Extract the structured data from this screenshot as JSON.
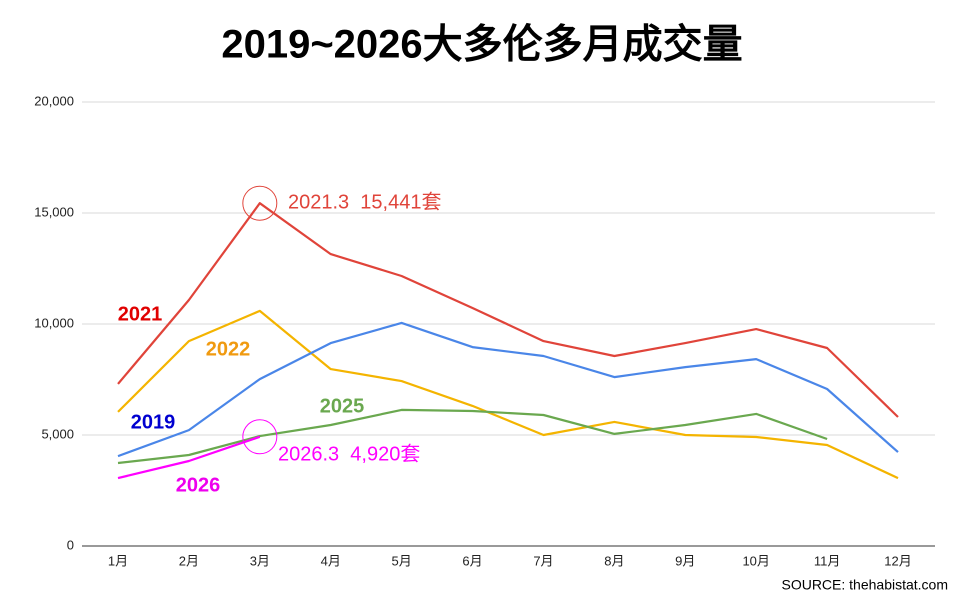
{
  "chart_data": {
    "type": "line",
    "title": "2019~2026大多伦多月成交量",
    "categories": [
      "1月",
      "2月",
      "3月",
      "4月",
      "5月",
      "6月",
      "7月",
      "8月",
      "9月",
      "10月",
      "11月",
      "12月"
    ],
    "ylim": [
      0,
      20000
    ],
    "yticks": [
      0,
      {
        "value": 5000,
        "label": "5,000"
      },
      {
        "value": 10000,
        "label": "10,000"
      },
      {
        "value": 15000,
        "label": "15,000"
      },
      {
        "value": 20000,
        "label": "20,000"
      }
    ],
    "grid": true,
    "series": [
      {
        "name": "2021",
        "color": "#e0443a",
        "label_color": "#e00000",
        "values": [
          7300,
          11080,
          15441,
          13150,
          12160,
          10720,
          9230,
          8560,
          9140,
          9770,
          8920,
          5810
        ],
        "annotation": "2021.3  15,441套"
      },
      {
        "name": "2022",
        "color": "#f4b400",
        "label_color": "#f09a10",
        "values": [
          6040,
          9230,
          10590,
          7970,
          7430,
          6310,
          5000,
          5590,
          5000,
          4910,
          4550,
          3060
        ]
      },
      {
        "name": "2019",
        "color": "#4a86e8",
        "label_color": "#0000d0",
        "values": [
          4050,
          5220,
          7520,
          9140,
          10050,
          8960,
          8560,
          7610,
          8060,
          8420,
          7070,
          4230
        ]
      },
      {
        "name": "2025",
        "color": "#6aa84f",
        "label_color": "#6aa84f",
        "values": [
          3740,
          4100,
          4950,
          5450,
          6130,
          6080,
          5900,
          5050,
          5450,
          5950,
          4820,
          null
        ]
      },
      {
        "name": "2026",
        "color": "#ff00ff",
        "label_color": "#ee00ee",
        "values": [
          3060,
          3830,
          4920,
          null,
          null,
          null,
          null,
          null,
          null,
          null,
          null,
          null
        ],
        "annotation": "2026.3  4,920套"
      }
    ],
    "source": "SOURCE: thehabistat.com"
  }
}
